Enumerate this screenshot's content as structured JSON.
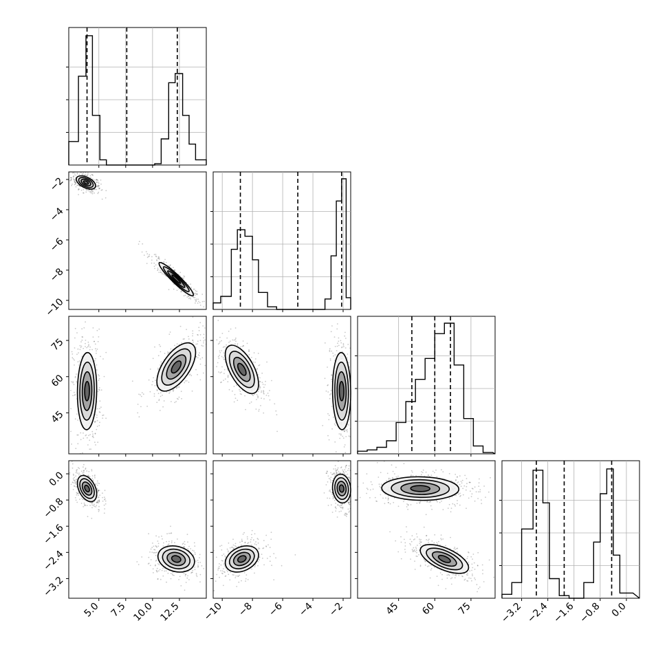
{
  "chart_data": {
    "type": "corner",
    "dims": [
      {
        "lim": [
          2.2,
          15.0
        ],
        "ticks": [
          5.0,
          7.5,
          10.0,
          12.5
        ],
        "tick_labels": [
          "5.0",
          "7.5",
          "10.0",
          "12.5"
        ],
        "quantiles": [
          3.9,
          7.6,
          12.3
        ]
      },
      {
        "lim": [
          -10.6,
          -1.5
        ],
        "ticks": [
          -10,
          -8,
          -6,
          -4,
          -2
        ],
        "tick_labels": [
          "−10",
          "−8",
          "−6",
          "−4",
          "−2"
        ],
        "quantiles": [
          -8.8,
          -5.0,
          -2.1
        ]
      },
      {
        "lim": [
          28,
          85
        ],
        "ticks": [
          45,
          60,
          75
        ],
        "tick_labels": [
          "45",
          "60",
          "75"
        ],
        "quantiles": [
          50.5,
          60.0,
          66.5
        ]
      },
      {
        "lim": [
          -3.8,
          0.4
        ],
        "ticks": [
          -3.2,
          -2.4,
          -1.6,
          -0.8,
          0.0
        ],
        "tick_labels": [
          "−3.2",
          "−2.4",
          "−1.6",
          "−0.8",
          "0.0"
        ],
        "quantiles": [
          -2.75,
          -1.9,
          -0.45
        ]
      }
    ],
    "histograms": [
      {
        "edges": [
          2.2,
          3.1,
          3.8,
          4.4,
          5.1,
          5.7,
          6.3,
          10.2,
          10.8,
          11.5,
          12.1,
          12.8,
          13.4,
          14.0,
          15.0
        ],
        "counts": [
          0.18,
          0.68,
          0.99,
          0.38,
          0.04,
          0.0,
          0.0,
          0.01,
          0.2,
          0.63,
          0.7,
          0.38,
          0.16,
          0.04
        ]
      },
      {
        "edges": [
          -10.6,
          -10.1,
          -9.4,
          -9.0,
          -8.5,
          -8.0,
          -7.6,
          -7.0,
          -6.4,
          -3.2,
          -2.8,
          -2.45,
          -2.1,
          -1.8,
          -1.5
        ],
        "counts": [
          0.05,
          0.1,
          0.46,
          0.61,
          0.56,
          0.38,
          0.13,
          0.02,
          0.0,
          0.08,
          0.41,
          0.83,
          1.0,
          0.09
        ]
      },
      {
        "edges": [
          28,
          32,
          36,
          40,
          44,
          48,
          52,
          56,
          60,
          64,
          68,
          72,
          76,
          80,
          84
        ],
        "counts": [
          0.02,
          0.03,
          0.05,
          0.1,
          0.24,
          0.4,
          0.57,
          0.73,
          0.92,
          1.0,
          0.68,
          0.27,
          0.06,
          0.01
        ]
      },
      {
        "edges": [
          -3.8,
          -3.5,
          -3.2,
          -2.85,
          -2.55,
          -2.35,
          -2.05,
          -1.75,
          -1.3,
          -1.0,
          -0.8,
          -0.6,
          -0.4,
          -0.2,
          0.2
        ],
        "counts": [
          0.03,
          0.12,
          0.53,
          0.98,
          0.73,
          0.15,
          0.02,
          0.0,
          0.12,
          0.43,
          0.8,
          0.99,
          0.33,
          0.04
        ]
      }
    ],
    "scatter_panels": [
      {
        "x_dim": 0,
        "y_dim": 1,
        "clusters": [
          {
            "cx": 3.8,
            "cy": -2.2,
            "sx": 0.45,
            "sy": 0.22,
            "rho": -0.5,
            "n": 380
          },
          {
            "cx": 12.2,
            "cy": -8.6,
            "sx": 0.8,
            "sy": 0.55,
            "rho": -0.94,
            "n": 380
          }
        ]
      },
      {
        "x_dim": 0,
        "y_dim": 2,
        "clusters": [
          {
            "cx": 3.9,
            "cy": 54,
            "sx": 0.45,
            "sy": 8,
            "rho": 0.05,
            "n": 380
          },
          {
            "cx": 12.2,
            "cy": 64,
            "sx": 0.9,
            "sy": 5,
            "rho": 0.6,
            "n": 380
          }
        ]
      },
      {
        "x_dim": 1,
        "y_dim": 2,
        "clusters": [
          {
            "cx": -8.7,
            "cy": 63,
            "sx": 0.55,
            "sy": 5,
            "rho": -0.6,
            "n": 380
          },
          {
            "cx": -2.1,
            "cy": 54,
            "sx": 0.3,
            "sy": 8,
            "rho": -0.05,
            "n": 380
          }
        ]
      },
      {
        "x_dim": 0,
        "y_dim": 3,
        "clusters": [
          {
            "cx": 3.9,
            "cy": -0.45,
            "sx": 0.45,
            "sy": 0.2,
            "rho": -0.4,
            "n": 380
          },
          {
            "cx": 12.2,
            "cy": -2.6,
            "sx": 0.85,
            "sy": 0.2,
            "rho": -0.2,
            "n": 380
          }
        ]
      },
      {
        "x_dim": 1,
        "y_dim": 3,
        "clusters": [
          {
            "cx": -8.7,
            "cy": -2.6,
            "sx": 0.55,
            "sy": 0.2,
            "rho": 0.3,
            "n": 380
          },
          {
            "cx": -2.1,
            "cy": -0.45,
            "sx": 0.3,
            "sy": 0.22,
            "rho": -0.1,
            "n": 380
          }
        ]
      },
      {
        "x_dim": 2,
        "y_dim": 3,
        "clusters": [
          {
            "cx": 54,
            "cy": -0.45,
            "sx": 8,
            "sy": 0.18,
            "rho": -0.05,
            "n": 420
          },
          {
            "cx": 64,
            "cy": -2.6,
            "sx": 5,
            "sy": 0.22,
            "rho": -0.6,
            "n": 420
          }
        ]
      }
    ]
  }
}
